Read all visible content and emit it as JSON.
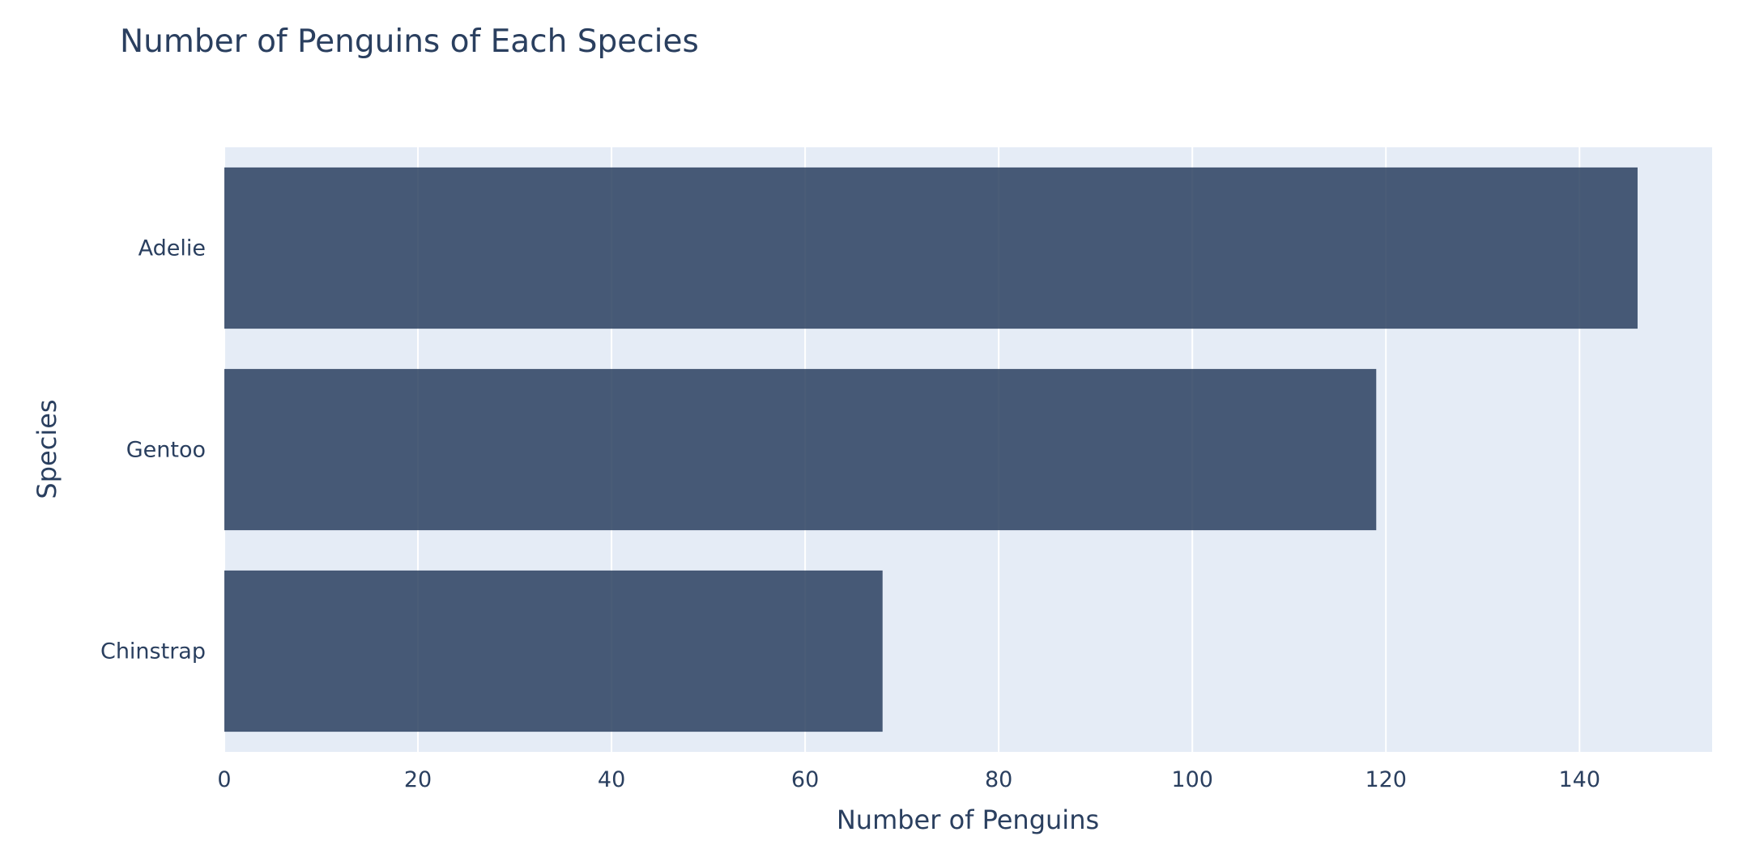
{
  "chart_data": {
    "type": "bar",
    "orientation": "horizontal",
    "title": "Number of Penguins of Each Species",
    "xlabel": "Number of Penguins",
    "ylabel": "Species",
    "categories": [
      "Adelie",
      "Gentoo",
      "Chinstrap"
    ],
    "values": [
      146,
      119,
      68
    ],
    "xlim": [
      0,
      153.7
    ],
    "xticks": [
      0,
      20,
      40,
      60,
      80,
      100,
      120,
      140
    ],
    "grid": true,
    "legend": "none",
    "colors": {
      "bar": "#2a3f5f",
      "plot_background": "#e5ecf6",
      "grid": "#ffffff",
      "text": "#2a3f5f"
    }
  }
}
